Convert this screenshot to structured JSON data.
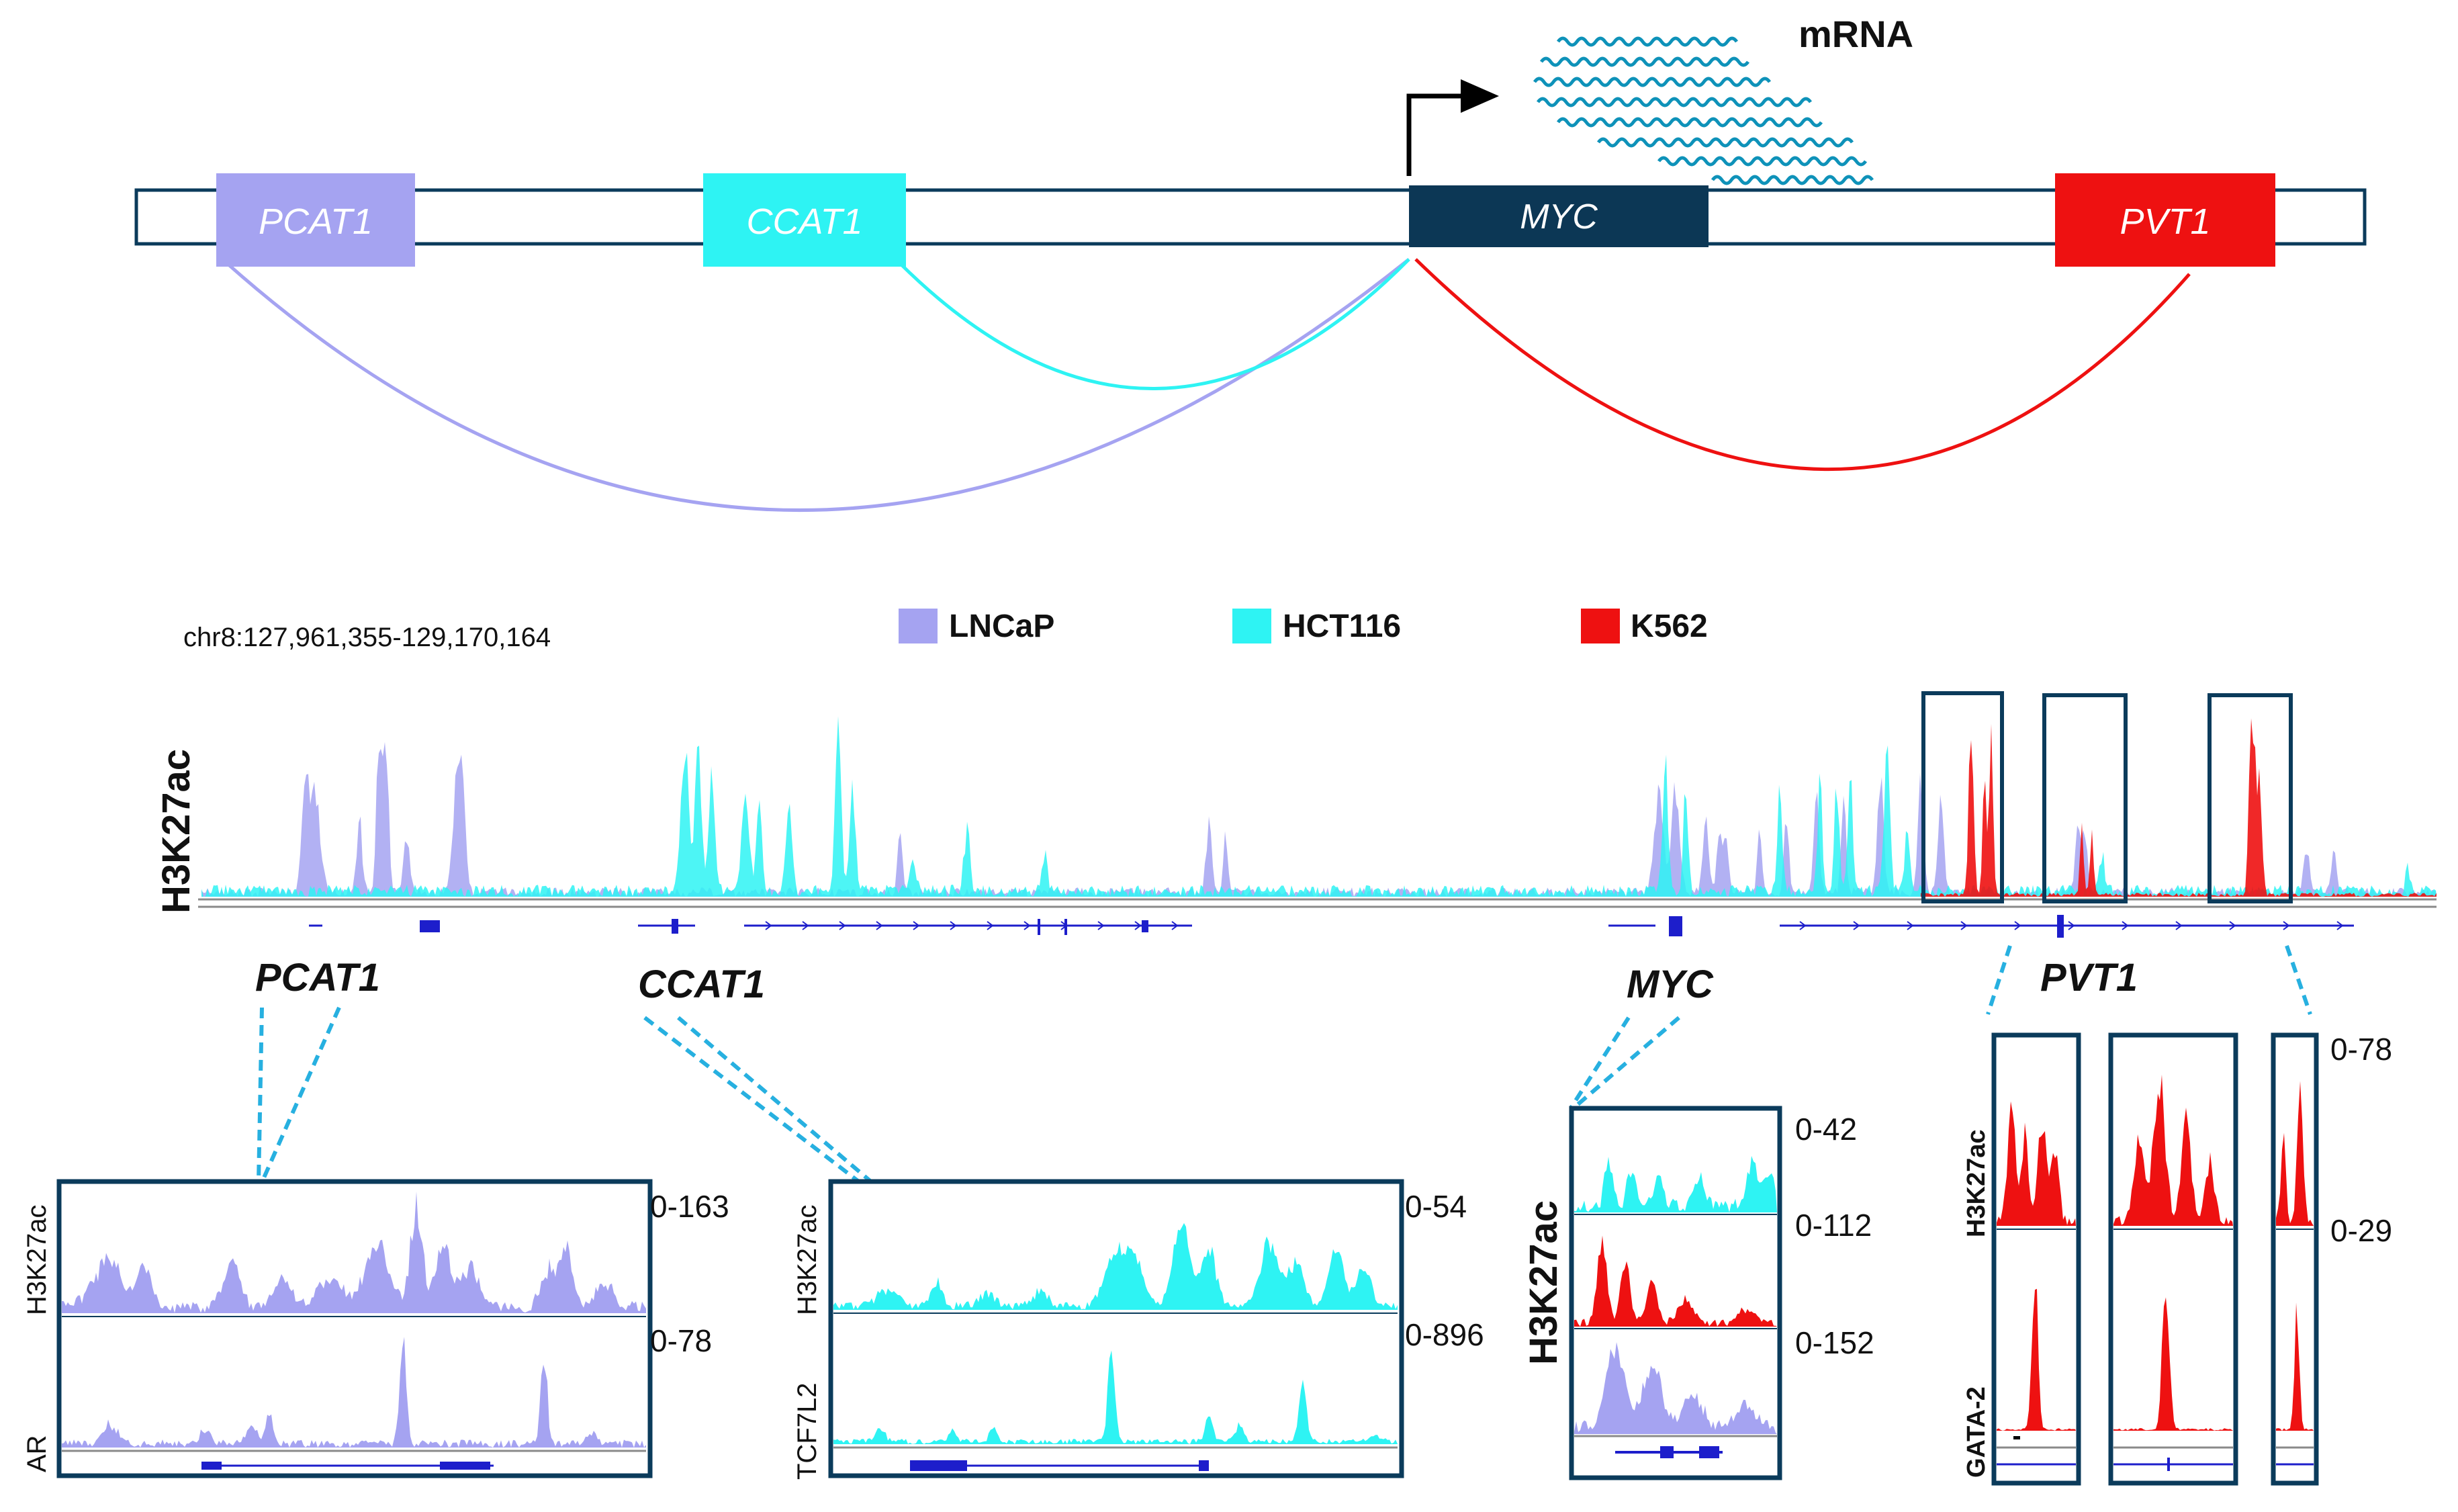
{
  "colors": {
    "lncap": "#a5a3f1",
    "hct116": "#2ef3f3",
    "k562": "#ee1111",
    "navy": "#0b3b5b",
    "myc_box": "#0c3755",
    "track": "#1d1ecb",
    "callout": "#27b0e0",
    "wave": "#0e92b9"
  },
  "top_diagram": {
    "genes": [
      {
        "id": "pcat1",
        "label": "PCAT1",
        "color": "#a5a3f1"
      },
      {
        "id": "ccat1",
        "label": "CCAT1",
        "color": "#2ef3f3"
      },
      {
        "id": "myc",
        "label": "MYC",
        "color": "#0c3755"
      },
      {
        "id": "pvt1",
        "label": "PVT1",
        "color": "#ee1111"
      }
    ],
    "mrna_label": "mRNA"
  },
  "coordinates": "chr8:127,961,355-129,170,164",
  "legend": [
    {
      "label": "LNCaP",
      "color": "#a5a3f1"
    },
    {
      "label": "HCT116",
      "color": "#2ef3f3"
    },
    {
      "label": "K562",
      "color": "#ee1111"
    }
  ],
  "overview": {
    "ylabel": "H3K27ac",
    "gene_labels": [
      "PCAT1",
      "CCAT1",
      "MYC",
      "PVT1"
    ]
  },
  "zooms": {
    "pcat1": {
      "tracks": [
        {
          "name": "H3K27ac",
          "range": "0-163"
        },
        {
          "name": "AR",
          "range": "0-78"
        }
      ]
    },
    "ccat1": {
      "tracks": [
        {
          "name": "H3K27ac",
          "range": "0-54"
        },
        {
          "name": "TCF7L2",
          "range": "0-896"
        }
      ]
    },
    "myc": {
      "ylabel": "H3K27ac",
      "ranges": [
        "0-42",
        "0-112",
        "0-152"
      ]
    },
    "pvt1": {
      "tracks": [
        {
          "name": "H3K27ac",
          "range": "0-78"
        },
        {
          "name": "GATA-2",
          "range": "0-29"
        }
      ]
    }
  }
}
